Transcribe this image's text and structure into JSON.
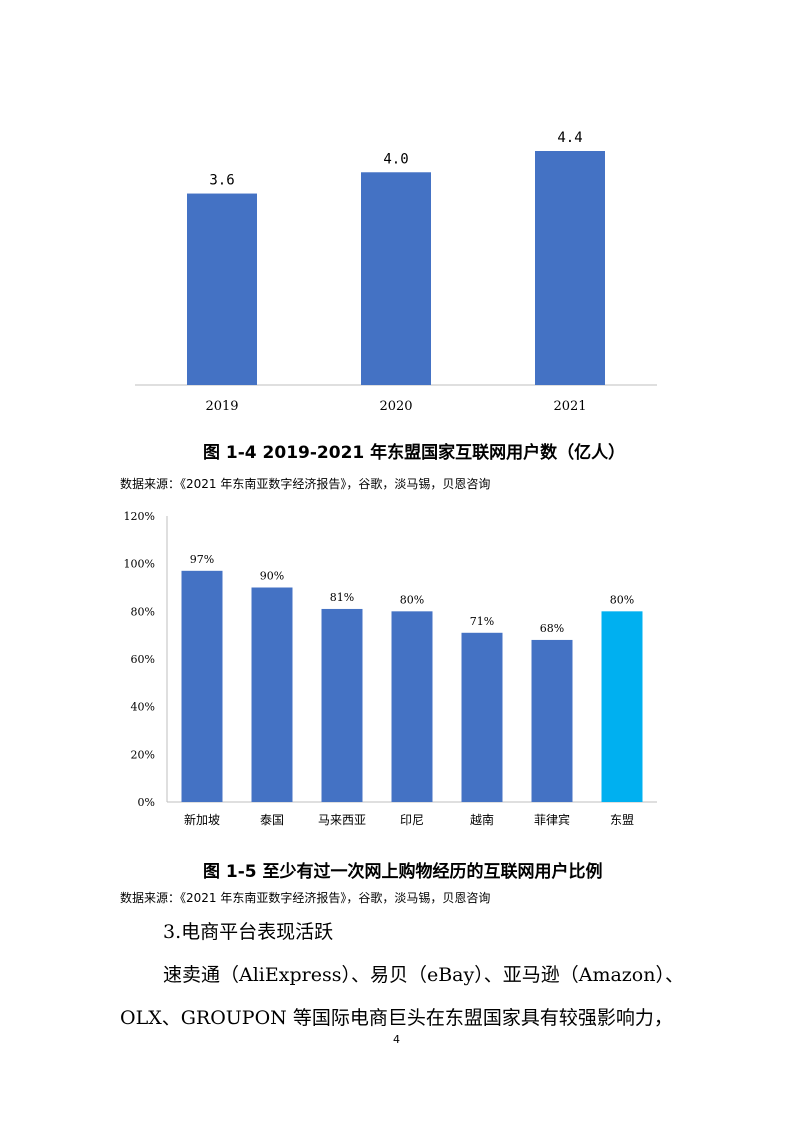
{
  "figure_1": {
    "caption": "图 1-4   2019-2021 年东盟国家互联网用户数（亿人）",
    "source": "数据来源：《2021 年东南亚数字经济报告》，谷歌，淡马锡，贝恩咨询"
  },
  "figure_2": {
    "caption": "图 1-5   至少有过一次网上购物经历的互联网用户比例",
    "source": "数据来源：《2021 年东南亚数字经济报告》，谷歌，淡马锡，贝恩咨询"
  },
  "chart_data": [
    {
      "type": "bar",
      "title": "",
      "xlabel": "",
      "ylabel": "",
      "categories": [
        "2019",
        "2020",
        "2021"
      ],
      "values": [
        3.6,
        4.0,
        4.4
      ],
      "data_labels": [
        "3.6",
        "4.0",
        "4.4"
      ],
      "ylim": [
        0,
        4.4
      ],
      "grid": false,
      "bar_color": "#4472C4"
    },
    {
      "type": "bar",
      "title": "",
      "xlabel": "",
      "ylabel": "",
      "categories": [
        "新加坡",
        "泰国",
        "马来西亚",
        "印尼",
        "越南",
        "菲律宾",
        "东盟"
      ],
      "values": [
        97,
        90,
        81,
        80,
        71,
        68,
        80
      ],
      "data_labels": [
        "97%",
        "90%",
        "81%",
        "80%",
        "71%",
        "68%",
        "80%"
      ],
      "yticks": [
        "0%",
        "20%",
        "40%",
        "60%",
        "80%",
        "100%",
        "120%"
      ],
      "ylim": [
        0,
        120
      ],
      "grid": false,
      "bar_color": "#4472C4",
      "highlight_color": "#00B0F0",
      "highlight_category": "东盟"
    }
  ],
  "section": {
    "heading": "3.电商平台表现活跃",
    "line1": "速卖通（AliExpress）、易贝（eBay）、亚马逊（Amazon）、",
    "line2": "OLX、GROUPON 等国际电商巨头在东盟国家具有较强影响力，"
  },
  "page_number": "4"
}
